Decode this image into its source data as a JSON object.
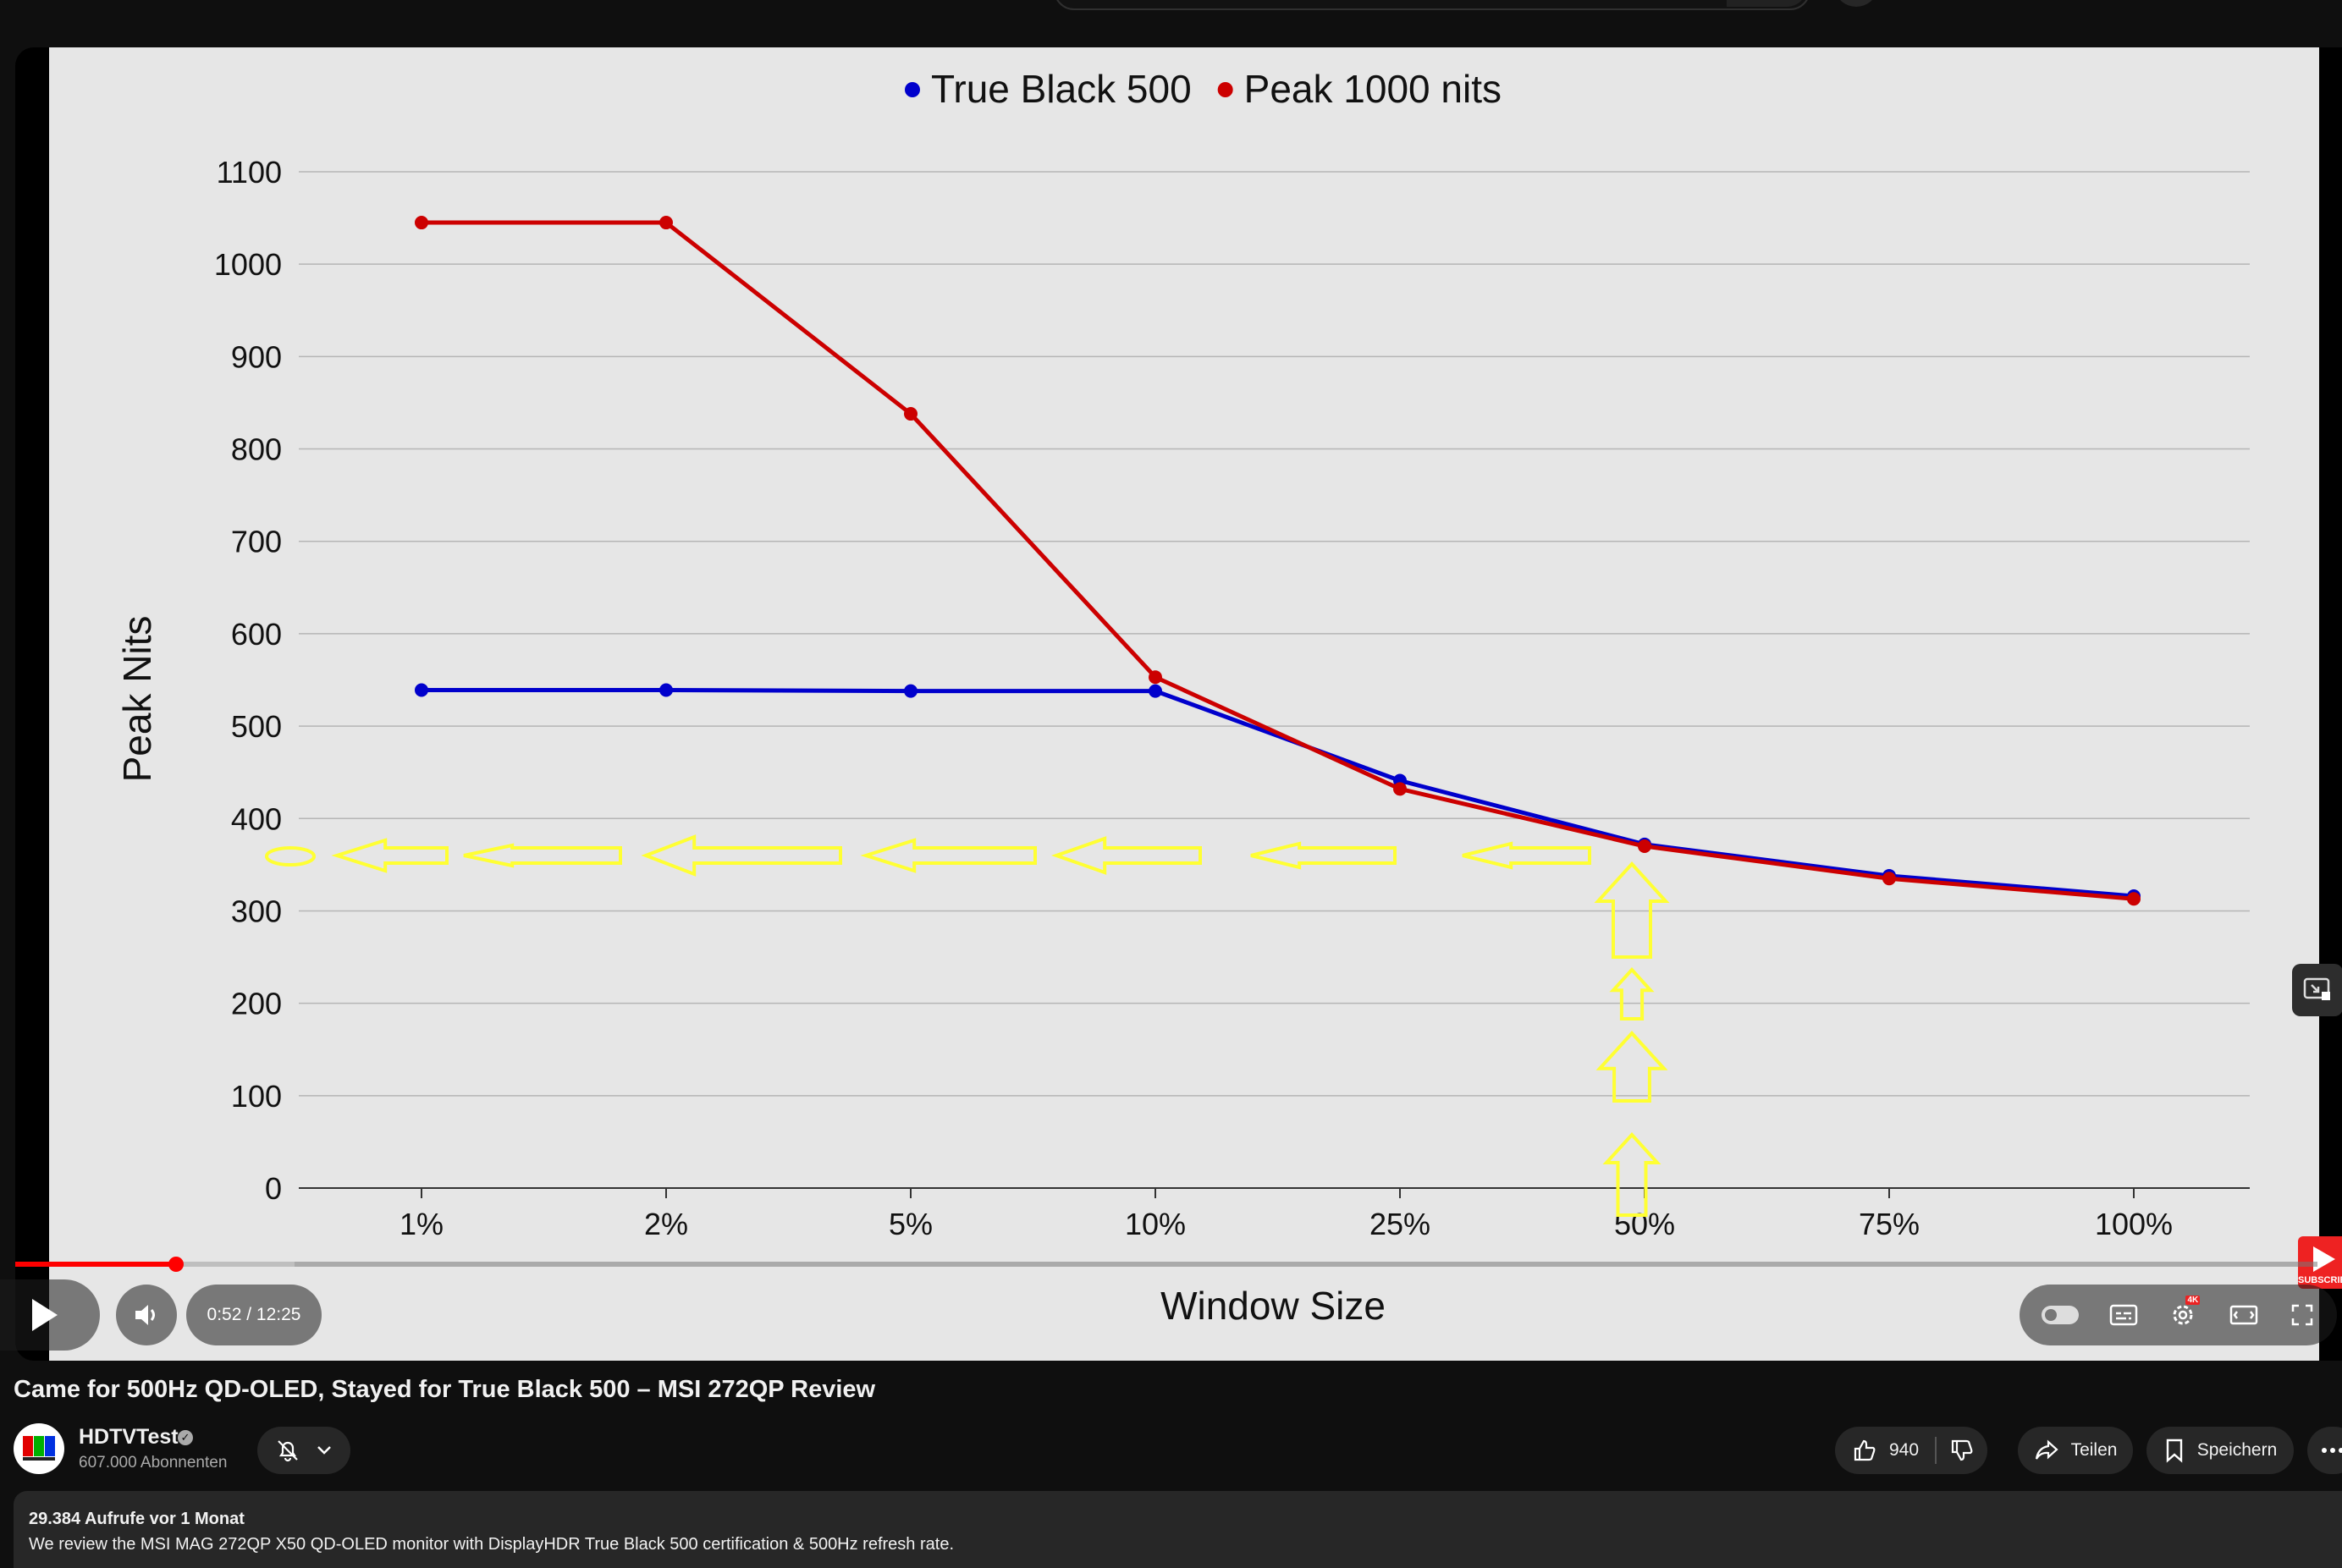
{
  "player": {
    "time_display": "0:52 / 12:25",
    "progress_fraction": 0.07,
    "side_button_icon": "picture-in-picture-icon",
    "subscribe_watermark": "SUBSCRIBE",
    "settings_badge": "4K"
  },
  "chart_data": {
    "type": "line",
    "title": "",
    "xlabel": "Window Size",
    "ylabel": "Peak Nits",
    "categories": [
      "1%",
      "2%",
      "5%",
      "10%",
      "25%",
      "50%",
      "75%",
      "100%"
    ],
    "yticks": [
      "0",
      "100",
      "200",
      "300",
      "400",
      "500",
      "600",
      "700",
      "800",
      "900",
      "1000",
      "1100"
    ],
    "ylim": [
      0,
      1100
    ],
    "grid": true,
    "legend_position": "top-center",
    "series": [
      {
        "name": "True Black 500",
        "color": "#0000cc",
        "values": [
          539,
          539,
          538,
          538,
          441,
          372,
          338,
          316
        ]
      },
      {
        "name": "Peak 1000 nits",
        "color": "#cc0000",
        "values": [
          1045,
          1045,
          838,
          553,
          432,
          370,
          335,
          313
        ]
      }
    ],
    "annotation_color": "#ffff33"
  },
  "video": {
    "title": "Came for 500Hz QD-OLED, Stayed for True Black 500 – MSI 272QP Review"
  },
  "channel": {
    "name": "HDTVTest",
    "subscribers": "607.000 Abonnenten"
  },
  "actions": {
    "likes": "940",
    "share": "Teilen",
    "save": "Speichern"
  },
  "description": {
    "stats": "29.384 Aufrufe  vor 1 Monat",
    "text": "We review the MSI MAG 272QP X50 QD-OLED monitor with DisplayHDR True Black 500 certification & 500Hz refresh rate."
  }
}
